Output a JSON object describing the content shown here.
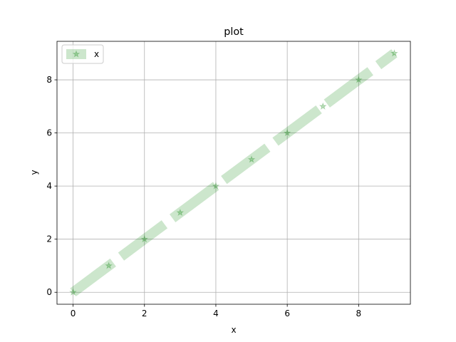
{
  "chart_data": {
    "type": "line",
    "title": "plot",
    "xlabel": "x",
    "ylabel": "y",
    "xlim": [
      -0.45,
      9.45
    ],
    "ylim": [
      -0.45,
      9.45
    ],
    "xticks": [
      0,
      2,
      4,
      6,
      8
    ],
    "yticks": [
      0,
      2,
      4,
      6,
      8
    ],
    "grid": true,
    "legend_position": "upper-left",
    "series": [
      {
        "name": "x",
        "x": [
          0,
          1,
          2,
          3,
          4,
          5,
          6,
          7,
          8,
          9
        ],
        "y": [
          0,
          1,
          2,
          3,
          4,
          5,
          6,
          7,
          8,
          9
        ],
        "color": "#008000",
        "line_style": "dashed",
        "marker": "star"
      }
    ]
  }
}
